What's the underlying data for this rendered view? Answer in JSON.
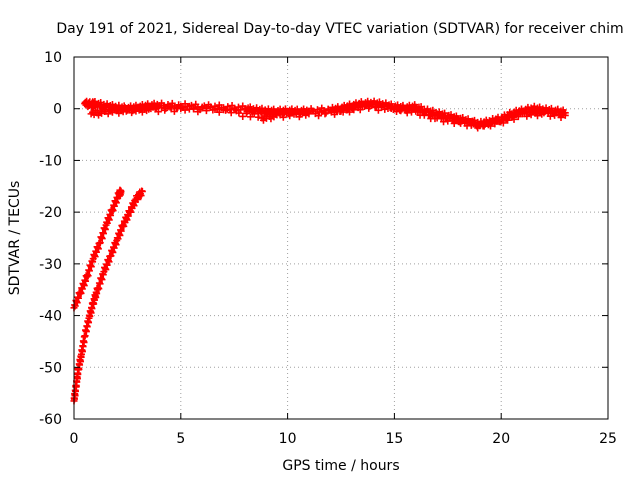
{
  "chart_data": {
    "type": "scatter",
    "title": "Day 191 of 2021, Sidereal Day-to-day VTEC variation (SDTVAR) for receiver chim",
    "xlabel": "GPS time / hours",
    "ylabel": "SDTVAR / TECUs",
    "xlim": [
      0,
      25
    ],
    "ylim": [
      -60,
      10
    ],
    "xticks": [
      0,
      5,
      10,
      15,
      20,
      25
    ],
    "yticks": [
      -60,
      -50,
      -40,
      -30,
      -20,
      -10,
      0,
      10
    ],
    "grid": true,
    "marker": "+",
    "color": "#ff0000",
    "series": [
      {
        "name": "main",
        "x": [
          0.5,
          0.8,
          1.0,
          1.5,
          2.0,
          2.5,
          3.0,
          3.5,
          4.0,
          5.0,
          6.0,
          7.0,
          8.0,
          8.5,
          9.0,
          9.5,
          10.0,
          10.5,
          11.0,
          12.0,
          12.5,
          13.0,
          13.5,
          14.0,
          14.5,
          15.0,
          15.5,
          16.0,
          16.5,
          17.0,
          17.5,
          18.0,
          18.5,
          19.0,
          19.5,
          20.0,
          20.5,
          21.0,
          21.5,
          22.0,
          22.5,
          23.0
        ],
        "y": [
          1.0,
          0.8,
          0.9,
          0.5,
          0.2,
          0.0,
          0.2,
          0.5,
          0.6,
          0.5,
          0.3,
          0.2,
          0.0,
          -0.3,
          -0.5,
          -0.6,
          -0.5,
          -0.6,
          -0.5,
          -0.3,
          0.0,
          0.5,
          0.9,
          1.0,
          0.7,
          0.3,
          0.1,
          0.3,
          -0.5,
          -1.0,
          -1.5,
          -2.0,
          -2.5,
          -3.0,
          -2.5,
          -2.0,
          -1.0,
          -0.5,
          0.0,
          -0.3,
          -0.5,
          -0.8
        ]
      },
      {
        "name": "main-lower-edge",
        "x": [
          0.8,
          1.5,
          2.5,
          3.5,
          5.0,
          7.0,
          8.8,
          9.5,
          11.0,
          12.5,
          13.5,
          15.0,
          16.0,
          17.0,
          18.0,
          19.0,
          20.0,
          21.0,
          22.0,
          23.0
        ],
        "y": [
          -1.0,
          -0.5,
          -0.3,
          -0.1,
          0.0,
          -0.2,
          -1.8,
          -1.2,
          -1.0,
          -0.5,
          0.4,
          0.0,
          -0.5,
          -1.8,
          -2.5,
          -3.3,
          -2.4,
          -1.0,
          -0.8,
          -1.3
        ]
      },
      {
        "name": "segment-a",
        "x": [
          0.0,
          0.3,
          0.6,
          0.9,
          1.2,
          1.5,
          1.8,
          2.1,
          2.2
        ],
        "y": [
          -38.5,
          -35.5,
          -32.5,
          -29.0,
          -26.0,
          -22.5,
          -19.5,
          -16.5,
          -16.0
        ]
      },
      {
        "name": "segment-b",
        "x": [
          0.0,
          0.1,
          0.2,
          0.35,
          0.5,
          0.7,
          0.9,
          1.1,
          1.4,
          1.7,
          2.0,
          2.3,
          2.6,
          2.9,
          3.2
        ],
        "y": [
          -56.5,
          -53.5,
          -50.5,
          -47.5,
          -44.0,
          -40.5,
          -37.5,
          -35.0,
          -31.5,
          -28.5,
          -25.5,
          -22.5,
          -20.0,
          -17.5,
          -16.0
        ]
      }
    ]
  }
}
